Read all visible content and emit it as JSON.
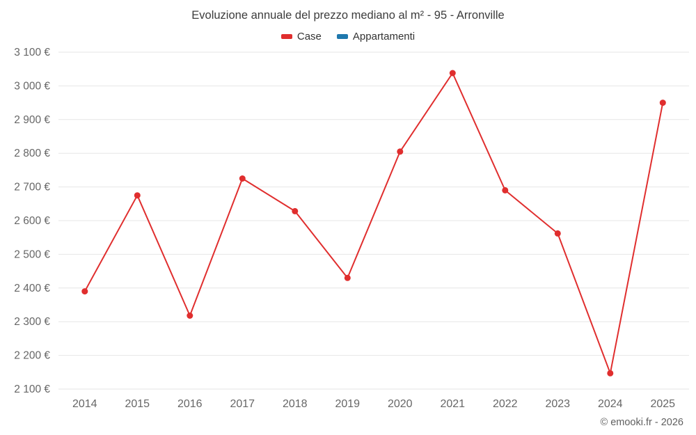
{
  "header": {
    "title": "Evoluzione annuale del prezzo mediano al m² - 95 - Arronville"
  },
  "legend": {
    "items": [
      {
        "label": "Case",
        "color": "#e02e2e"
      },
      {
        "label": "Appartamenti",
        "color": "#1f78ad"
      }
    ]
  },
  "chart_data": {
    "type": "line",
    "title": "Evoluzione annuale del prezzo mediano al m² - 95 - Arronville",
    "categories": [
      "2014",
      "2015",
      "2016",
      "2017",
      "2018",
      "2019",
      "2020",
      "2021",
      "2022",
      "2023",
      "2024",
      "2025"
    ],
    "series": [
      {
        "name": "Case",
        "color": "#e02e2e",
        "values": [
          2390,
          2675,
          2318,
          2725,
          2628,
          2430,
          2805,
          3038,
          2690,
          2562,
          2147,
          2950
        ]
      },
      {
        "name": "Appartamenti",
        "color": "#1f78ad",
        "values": []
      }
    ],
    "ylim": [
      2100,
      3100
    ],
    "y_tick_step": 100,
    "y_suffix": "€",
    "grid": "horizontal",
    "grid_color": "#e6e6e6",
    "axis_label_color": "#666666",
    "legend_position": "top"
  },
  "footer": {
    "credit": "© emooki.fr - 2026"
  }
}
